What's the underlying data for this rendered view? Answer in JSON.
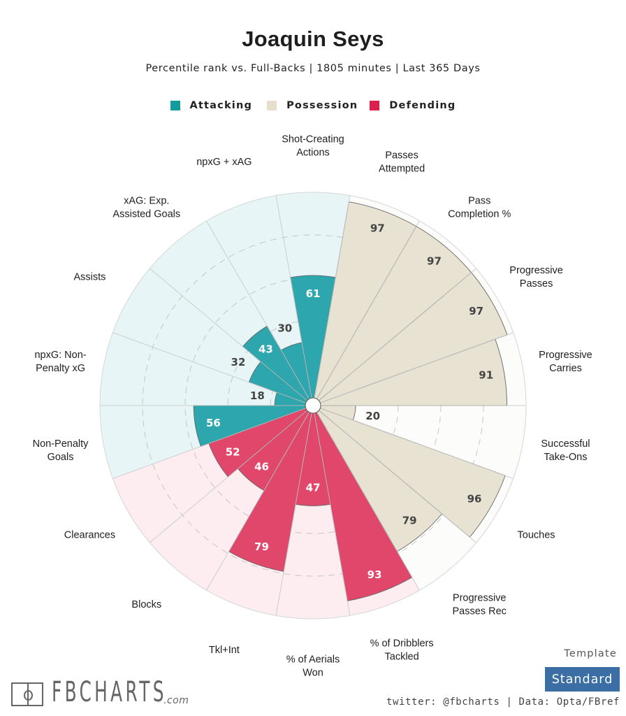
{
  "header": {
    "title": "Joaquin Seys",
    "subtitle": "Percentile rank vs. Full-Backs | 1805 minutes | Last 365 Days"
  },
  "legend": [
    {
      "label": "Attacking",
      "color": "#129c9d"
    },
    {
      "label": "Possession",
      "color": "#e6dfcb"
    },
    {
      "label": "Defending",
      "color": "#df1f4d"
    }
  ],
  "categories": {
    "attacking": {
      "bar": "#2ea6ae",
      "background": "#e8f5f6",
      "value_text_inside": "#ffffff"
    },
    "possession": {
      "bar": "#e7e2d2",
      "background": "#fcfcfa",
      "value_text_inside": "#444444"
    },
    "defending": {
      "bar": "#e1476a",
      "background": "#fdecf0",
      "value_text_inside": "#ffffff"
    }
  },
  "chart_data": {
    "type": "polar-bar",
    "title": "Joaquin Seys",
    "subtitle": "Percentile rank vs. Full-Backs | 1805 minutes | Last 365 Days",
    "radial_range": [
      0,
      100
    ],
    "radial_gridlines": [
      20,
      40,
      60,
      80
    ],
    "legend_placement": "top-center",
    "series": [
      {
        "label": [
          "Shot-Creating",
          "Actions"
        ],
        "value": 61,
        "category": "attacking"
      },
      {
        "label": [
          "Passes",
          "Attempted"
        ],
        "value": 97,
        "category": "possession"
      },
      {
        "label": [
          "Pass",
          "Completion %"
        ],
        "value": 97,
        "category": "possession"
      },
      {
        "label": [
          "Progressive",
          "Passes"
        ],
        "value": 97,
        "category": "possession"
      },
      {
        "label": [
          "Progressive",
          "Carries"
        ],
        "value": 91,
        "category": "possession"
      },
      {
        "label": [
          "Successful",
          "Take-Ons"
        ],
        "value": 20,
        "category": "possession"
      },
      {
        "label": [
          "Touches"
        ],
        "value": 96,
        "category": "possession"
      },
      {
        "label": [
          "Progressive",
          "Passes Rec"
        ],
        "value": 79,
        "category": "possession"
      },
      {
        "label": [
          "% of Dribblers",
          "Tackled"
        ],
        "value": 93,
        "category": "defending"
      },
      {
        "label": [
          "% of Aerials",
          "Won"
        ],
        "value": 47,
        "category": "defending"
      },
      {
        "label": [
          "Tkl+Int"
        ],
        "value": 79,
        "category": "defending"
      },
      {
        "label": [
          "Blocks"
        ],
        "value": 46,
        "category": "defending"
      },
      {
        "label": [
          "Clearances"
        ],
        "value": 52,
        "category": "defending"
      },
      {
        "label": [
          "Non-Penalty",
          "Goals"
        ],
        "value": 56,
        "category": "attacking"
      },
      {
        "label": [
          "npxG: Non-",
          "Penalty xG"
        ],
        "value": 18,
        "category": "attacking"
      },
      {
        "label": [
          "Assists"
        ],
        "value": 32,
        "category": "attacking"
      },
      {
        "label": [
          "xAG: Exp.",
          "Assisted Goals"
        ],
        "value": 43,
        "category": "attacking"
      },
      {
        "label": [
          "npxG + xAG"
        ],
        "value": 30,
        "category": "attacking"
      }
    ]
  },
  "footer": {
    "logo_text": "FBCHARTS",
    "logo_suffix": ".com",
    "template_label": "Template",
    "template_value": "Standard",
    "credits": "twitter: @fbcharts | Data: Opta/FBref"
  }
}
